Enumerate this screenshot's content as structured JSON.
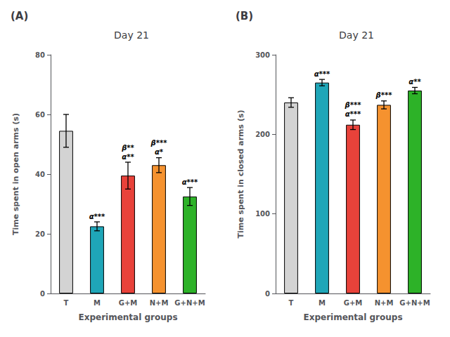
{
  "chart_data": [
    {
      "type": "bar",
      "title": "Day 21",
      "subtitle": "(A)",
      "categories": [
        "T",
        "M",
        "G+M",
        "N+M",
        "G+N+M"
      ],
      "values": [
        54.5,
        22.5,
        39.5,
        43.0,
        32.5
      ],
      "errors": [
        5.5,
        1.5,
        4.5,
        2.5,
        3.0
      ],
      "colors": [
        "#d3d3d3",
        "#1fa6b8",
        "#e8423a",
        "#f5922f",
        "#2db228"
      ],
      "xlabel": "Experimental groups",
      "ylabel": "Time spent in open arms (s)",
      "ylim": [
        0,
        80
      ],
      "yticks": [
        0,
        20,
        40,
        60,
        80
      ],
      "grid": false,
      "annotations": [
        {
          "category": "M",
          "text": "α***"
        },
        {
          "category": "G+M",
          "text": "α**"
        },
        {
          "category": "G+M",
          "text": "β**"
        },
        {
          "category": "N+M",
          "text": "α*"
        },
        {
          "category": "N+M",
          "text": "β***"
        },
        {
          "category": "G+N+M",
          "text": "α***"
        }
      ]
    },
    {
      "type": "bar",
      "title": "Day 21",
      "subtitle": "(B)",
      "categories": [
        "T",
        "M",
        "G+M",
        "N+M",
        "G+N+M"
      ],
      "values": [
        240.0,
        265.0,
        212.0,
        237.0,
        255.0
      ],
      "errors": [
        6.0,
        4.0,
        6.0,
        5.0,
        4.0
      ],
      "colors": [
        "#d3d3d3",
        "#1fa6b8",
        "#e8423a",
        "#f5922f",
        "#2db228"
      ],
      "xlabel": "Experimental groups",
      "ylabel": "Time spent in closed arms (s)",
      "ylim": [
        0,
        300
      ],
      "yticks": [
        0,
        100,
        200,
        300
      ],
      "grid": false,
      "annotations": [
        {
          "category": "M",
          "text": "α***"
        },
        {
          "category": "G+M",
          "text": "α***"
        },
        {
          "category": "G+M",
          "text": "β***"
        },
        {
          "category": "N+M",
          "text": "β***"
        },
        {
          "category": "G+N+M",
          "text": "α**"
        }
      ]
    }
  ]
}
